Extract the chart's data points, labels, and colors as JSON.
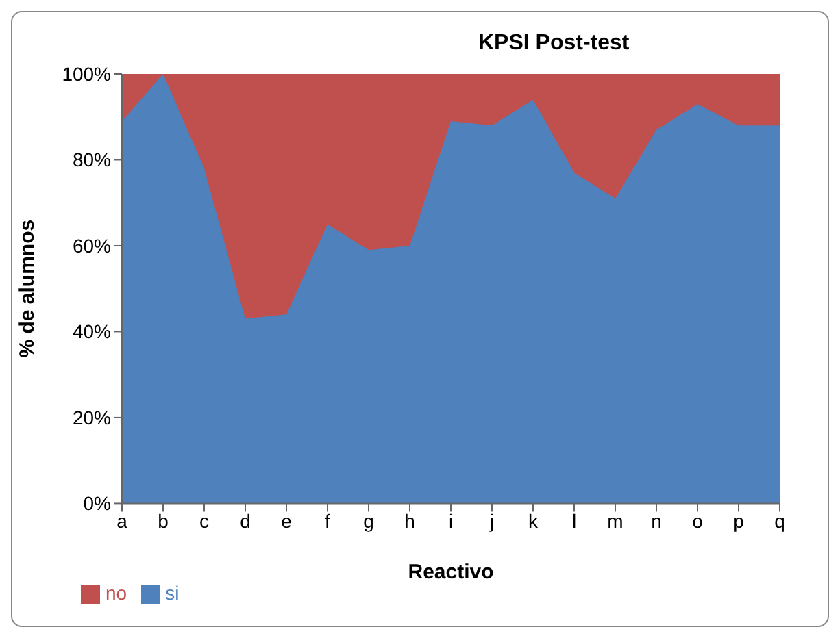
{
  "chart_data": {
    "type": "area",
    "title": "KPSI  Post-test",
    "xlabel": "Reactivo",
    "ylabel": "% de alumnos",
    "stacked": true,
    "categories": [
      "a",
      "b",
      "c",
      "d",
      "e",
      "f",
      "g",
      "h",
      "i",
      "j",
      "k",
      "l",
      "m",
      "n",
      "o",
      "p",
      "q"
    ],
    "series": [
      {
        "name": "si",
        "color": "#4f81bd",
        "values": [
          89,
          100,
          78,
          43,
          44,
          65,
          59,
          60,
          89,
          88,
          94,
          77,
          71,
          87,
          93,
          88,
          88
        ]
      },
      {
        "name": "no",
        "color": "#c0504d",
        "values": [
          11,
          0,
          22,
          57,
          56,
          35,
          41,
          40,
          11,
          12,
          6,
          23,
          29,
          13,
          7,
          12,
          12
        ]
      }
    ],
    "ylim": [
      0,
      100
    ],
    "yticks": [
      {
        "value": 0,
        "label": "0%"
      },
      {
        "value": 20,
        "label": "20%"
      },
      {
        "value": 40,
        "label": "40%"
      },
      {
        "value": 60,
        "label": "60%"
      },
      {
        "value": 80,
        "label": "80%"
      },
      {
        "value": 100,
        "label": "100%"
      }
    ],
    "grid": false,
    "legend": "bottom left"
  }
}
